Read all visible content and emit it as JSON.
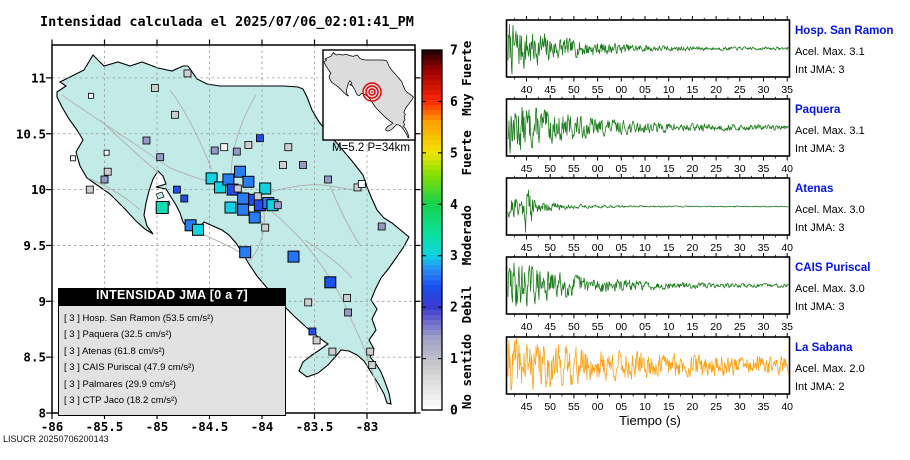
{
  "footer": "LISUCR 20250706200143",
  "chart_data": [
    {
      "type": "map-scatter",
      "title": "Intensidad calculada el 2025/07/06_02:01:41_PM",
      "xlabel_title": "",
      "x_ticks": [
        {
          "v": -86,
          "label": "-86"
        },
        {
          "v": -85.5,
          "label": "-85.5"
        },
        {
          "v": -85,
          "label": "-85"
        },
        {
          "v": -84.5,
          "label": "-84.5"
        },
        {
          "v": -84,
          "label": "-84"
        },
        {
          "v": -83.5,
          "label": "-83.5"
        },
        {
          "v": -83,
          "label": "-83"
        }
      ],
      "y_ticks": [
        {
          "v": 11,
          "label": "11"
        },
        {
          "v": 10.5,
          "label": "10.5"
        },
        {
          "v": 10,
          "label": "10"
        },
        {
          "v": 9.5,
          "label": "9.5"
        },
        {
          "v": 9,
          "label": "9"
        },
        {
          "v": 8.5,
          "label": "8.5"
        },
        {
          "v": 8,
          "label": "8"
        }
      ],
      "lon_range": [
        -86,
        -82.54
      ],
      "lat_range": [
        8,
        11.29
      ],
      "event": {
        "label": "M=5.2 P=34km",
        "magnitude": "5.2",
        "depth_km": "34",
        "epicenter_lon": -84.16,
        "epicenter_lat": 9.75
      },
      "colorbar": {
        "ticks": [
          "0",
          "1",
          "2",
          "3",
          "4",
          "5",
          "6",
          "7"
        ],
        "categories": [
          {
            "label": "No sentido",
            "value": 0.75
          },
          {
            "label": "Debil",
            "value": 2.05
          },
          {
            "label": "Moderado",
            "value": 3.4
          },
          {
            "label": "Fuerte",
            "value": 5.0
          },
          {
            "label": "Muy Fuerte",
            "value": 6.45
          }
        ]
      },
      "legend": {
        "title": "INTENSIDAD JMA [0 a 7]",
        "unit": "cm/s²",
        "items": [
          {
            "intensity": "3",
            "name": "Hosp. San Ramon",
            "accel": "53.5"
          },
          {
            "intensity": "3",
            "name": "Paquera",
            "accel": "32.5"
          },
          {
            "intensity": "3",
            "name": "Atenas",
            "accel": "61.8"
          },
          {
            "intensity": "3",
            "name": "CAIS Puriscal",
            "accel": "47.9"
          },
          {
            "intensity": "3",
            "name": "Palmares",
            "accel": "29.9"
          },
          {
            "intensity": "3",
            "name": "CTP Jaco",
            "accel": "18.2"
          }
        ]
      },
      "squares": [
        {
          "lon": -84.48,
          "lat": 10.1,
          "v": 3.0,
          "s": 11
        },
        {
          "lon": -84.4,
          "lat": 10.02,
          "v": 3.0,
          "s": 11
        },
        {
          "lon": -84.32,
          "lat": 10.09,
          "v": 2.65,
          "s": 11
        },
        {
          "lon": -84.21,
          "lat": 10.16,
          "v": 2.65,
          "s": 11
        },
        {
          "lon": -84.28,
          "lat": 10.0,
          "v": 2.3,
          "s": 11
        },
        {
          "lon": -84.13,
          "lat": 10.07,
          "v": 2.65,
          "s": 11
        },
        {
          "lon": -84.1,
          "lat": 9.91,
          "v": 2.3,
          "s": 11
        },
        {
          "lon": -83.97,
          "lat": 10.01,
          "v": 3.0,
          "s": 11
        },
        {
          "lon": -84.18,
          "lat": 9.92,
          "v": 2.65,
          "s": 11
        },
        {
          "lon": -84.3,
          "lat": 9.84,
          "v": 3.0,
          "s": 11
        },
        {
          "lon": -84.18,
          "lat": 9.82,
          "v": 2.65,
          "s": 11
        },
        {
          "lon": -84.02,
          "lat": 9.86,
          "v": 2.3,
          "s": 11
        },
        {
          "lon": -83.94,
          "lat": 9.88,
          "v": 2.65,
          "s": 11
        },
        {
          "lon": -83.9,
          "lat": 9.86,
          "v": 3.0,
          "s": 11
        },
        {
          "lon": -84.07,
          "lat": 9.75,
          "v": 2.65,
          "s": 11
        },
        {
          "lon": -84.95,
          "lat": 9.84,
          "v": 3.3,
          "s": 12
        },
        {
          "lon": -84.68,
          "lat": 9.68,
          "v": 2.65,
          "s": 11
        },
        {
          "lon": -84.61,
          "lat": 9.64,
          "v": 3.0,
          "s": 11
        },
        {
          "lon": -84.16,
          "lat": 9.44,
          "v": 2.65,
          "s": 11
        },
        {
          "lon": -83.7,
          "lat": 9.4,
          "v": 2.6,
          "s": 11
        },
        {
          "lon": -83.35,
          "lat": 9.17,
          "v": 2.4,
          "s": 11
        },
        {
          "lon": -84.71,
          "lat": 11.04,
          "v": 0.8,
          "s": 7
        },
        {
          "lon": -85.02,
          "lat": 10.91,
          "v": 0.8,
          "s": 7
        },
        {
          "lon": -84.83,
          "lat": 10.67,
          "v": 0.8,
          "s": 7
        },
        {
          "lon": -85.1,
          "lat": 10.44,
          "v": 1.45,
          "s": 7
        },
        {
          "lon": -84.45,
          "lat": 10.35,
          "v": 1.45,
          "s": 7
        },
        {
          "lon": -84.36,
          "lat": 10.38,
          "v": 0.05,
          "s": 7
        },
        {
          "lon": -84.24,
          "lat": 10.34,
          "v": 1.45,
          "s": 7
        },
        {
          "lon": -84.13,
          "lat": 10.4,
          "v": 0.8,
          "s": 7
        },
        {
          "lon": -84.02,
          "lat": 10.46,
          "v": 2.3,
          "s": 7
        },
        {
          "lon": -83.75,
          "lat": 10.38,
          "v": 0.8,
          "s": 7
        },
        {
          "lon": -83.8,
          "lat": 10.22,
          "v": 0.8,
          "s": 7
        },
        {
          "lon": -83.61,
          "lat": 10.22,
          "v": 1.45,
          "s": 7
        },
        {
          "lon": -85.47,
          "lat": 10.16,
          "v": 0.8,
          "s": 7
        },
        {
          "lon": -85.5,
          "lat": 10.09,
          "v": 1.45,
          "s": 7
        },
        {
          "lon": -85.64,
          "lat": 10.0,
          "v": 0.8,
          "s": 7
        },
        {
          "lon": -84.97,
          "lat": 10.29,
          "v": 1.45,
          "s": 7
        },
        {
          "lon": -84.81,
          "lat": 10.0,
          "v": 2.3,
          "s": 7
        },
        {
          "lon": -84.74,
          "lat": 9.92,
          "v": 2.3,
          "s": 7
        },
        {
          "lon": -84.23,
          "lat": 10.01,
          "v": 0.8,
          "s": 7
        },
        {
          "lon": -84.04,
          "lat": 9.94,
          "v": 0.8,
          "s": 7
        },
        {
          "lon": -83.85,
          "lat": 9.86,
          "v": 1.45,
          "s": 7
        },
        {
          "lon": -83.97,
          "lat": 9.66,
          "v": 0.8,
          "s": 7
        },
        {
          "lon": -83.56,
          "lat": 8.99,
          "v": 0.8,
          "s": 7
        },
        {
          "lon": -83.19,
          "lat": 9.03,
          "v": 0.8,
          "s": 7
        },
        {
          "lon": -83.18,
          "lat": 8.9,
          "v": 1.45,
          "s": 7
        },
        {
          "lon": -83.52,
          "lat": 8.73,
          "v": 2.3,
          "s": 7
        },
        {
          "lon": -83.48,
          "lat": 8.65,
          "v": 0.8,
          "s": 7
        },
        {
          "lon": -83.33,
          "lat": 8.55,
          "v": 0.8,
          "s": 7
        },
        {
          "lon": -82.97,
          "lat": 8.55,
          "v": 0.8,
          "s": 7
        },
        {
          "lon": -82.95,
          "lat": 8.43,
          "v": 0.8,
          "s": 7
        },
        {
          "lon": -82.86,
          "lat": 9.67,
          "v": 1.45,
          "s": 7
        },
        {
          "lon": -83.09,
          "lat": 10.02,
          "v": 0.8,
          "s": 7
        },
        {
          "lon": -83.05,
          "lat": 10.05,
          "v": 0.05,
          "s": 7
        },
        {
          "lon": -83.37,
          "lat": 10.09,
          "v": 1.45,
          "s": 7
        },
        {
          "lon": -85.63,
          "lat": 10.84,
          "v": 0.05,
          "s": 5
        },
        {
          "lon": -85.48,
          "lat": 10.33,
          "v": 0.05,
          "s": 5
        },
        {
          "lon": -85.8,
          "lat": 10.28,
          "v": 0.05,
          "s": 5
        }
      ]
    },
    {
      "type": "seismograms",
      "xlabel": "Tiempo (s)",
      "panels": [
        {
          "station": "Hosp. San Ramon",
          "acel_label": "Acel. Max. 3.1",
          "int_label": "Int JMA: 3",
          "acel_max": 3.1,
          "int_jma": 3,
          "color": "#1e7d1e",
          "ticks": [
            "40",
            "45",
            "50",
            "55",
            "00",
            "05",
            "10",
            "15",
            "20",
            "25",
            "30",
            "35"
          ],
          "seed": 7,
          "amp": 1.0,
          "decay": 5,
          "tail": 0.05,
          "spike": {
            "a": 1.0,
            "t": 0.004,
            "w": 0.004
          }
        },
        {
          "station": "Paquera",
          "acel_label": "Acel. Max. 3.1",
          "int_label": "Int JMA: 3",
          "acel_max": 3.1,
          "int_jma": 3,
          "color": "#1e7d1e",
          "ticks": [
            "45",
            "50",
            "55",
            "00",
            "05",
            "10",
            "15",
            "20",
            "25",
            "30",
            "35",
            "40"
          ],
          "seed": 13,
          "amp": 1.0,
          "decay": 4,
          "tail": 0.08,
          "spike": null
        },
        {
          "station": "Atenas",
          "acel_label": "Acel. Max. 3.0",
          "int_label": "Int JMA: 3",
          "acel_max": 3.0,
          "int_jma": 3,
          "color": "#1e7d1e",
          "ticks": [
            "45",
            "50",
            "55",
            "00",
            "05",
            "10",
            "15",
            "20",
            "25",
            "30",
            "35",
            "40"
          ],
          "seed": 21,
          "amp": 0.5,
          "decay": 8,
          "tail": 0.02,
          "spike": {
            "a": 0.95,
            "t": 0.07,
            "w": 0.013
          }
        },
        {
          "station": "CAIS Puriscal",
          "acel_label": "Acel. Max. 3.0",
          "int_label": "Int JMA: 3",
          "acel_max": 3.0,
          "int_jma": 3,
          "color": "#1e7d1e",
          "ticks": [
            "40",
            "45",
            "50",
            "55",
            "00",
            "05",
            "10",
            "15",
            "20",
            "25",
            "30",
            "35"
          ],
          "seed": 29,
          "amp": 1.0,
          "decay": 4.5,
          "tail": 0.06,
          "spike": null
        },
        {
          "station": "La Sabana",
          "acel_label": "Acel. Max. 2.0",
          "int_label": "Int JMA: 2",
          "acel_max": 2.0,
          "int_jma": 2,
          "color": "#ffa216",
          "ticks": [
            "45",
            "50",
            "55",
            "00",
            "05",
            "10",
            "15",
            "20",
            "25",
            "30",
            "35",
            "40"
          ],
          "seed": 41,
          "amp": 0.8,
          "decay": 2.5,
          "tail": 0.28,
          "spike": null
        }
      ]
    }
  ]
}
